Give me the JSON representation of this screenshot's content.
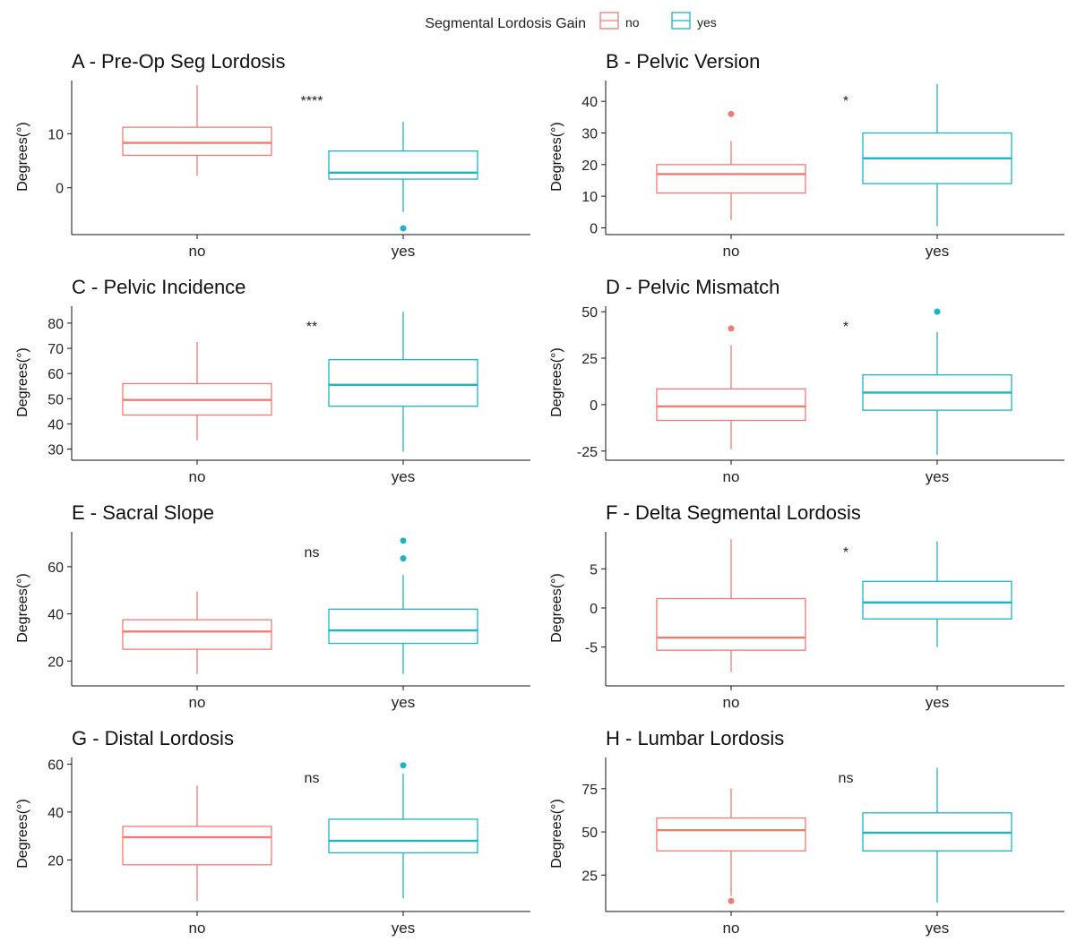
{
  "legend": {
    "title": "Segmental Lordosis Gain",
    "entries": [
      {
        "label": "no",
        "color": "#f17b72"
      },
      {
        "label": "yes",
        "color": "#1bb5c2"
      }
    ]
  },
  "chart_data": [
    {
      "type": "box",
      "title": "A - Pre-Op Seg Lordosis",
      "ylabel": "Degrees(°)",
      "categories": [
        "no",
        "yes"
      ],
      "ylim": [
        -8,
        19.5
      ],
      "yticks": [
        0,
        10
      ],
      "significance": "****",
      "boxes": [
        {
          "category": "no",
          "min": 2.2,
          "q1": 6.0,
          "median": 8.3,
          "q3": 11.2,
          "max": 19.0,
          "outliers": []
        },
        {
          "category": "yes",
          "min": -4.5,
          "q1": 1.6,
          "median": 2.8,
          "q3": 6.8,
          "max": 12.2,
          "outliers": [
            -7.5
          ]
        }
      ]
    },
    {
      "type": "box",
      "title": "B - Pelvic Version",
      "ylabel": "Degrees(°)",
      "categories": [
        "no",
        "yes"
      ],
      "ylim": [
        -1,
        46
      ],
      "yticks": [
        0,
        10,
        20,
        30,
        40
      ],
      "significance": "*",
      "boxes": [
        {
          "category": "no",
          "min": 2.5,
          "q1": 11.0,
          "median": 17.0,
          "q3": 20.0,
          "max": 27.5,
          "outliers": [
            36
          ]
        },
        {
          "category": "yes",
          "min": 0.5,
          "q1": 14.0,
          "median": 22.0,
          "q3": 30.0,
          "max": 45.5,
          "outliers": []
        }
      ]
    },
    {
      "type": "box",
      "title": "C - Pelvic Incidence",
      "ylabel": "Degrees(°)",
      "categories": [
        "no",
        "yes"
      ],
      "ylim": [
        27,
        86
      ],
      "yticks": [
        30,
        40,
        50,
        60,
        70,
        80
      ],
      "significance": "**",
      "boxes": [
        {
          "category": "no",
          "min": 33.5,
          "q1": 43.5,
          "median": 49.5,
          "q3": 56.0,
          "max": 72.5,
          "outliers": []
        },
        {
          "category": "yes",
          "min": 29.0,
          "q1": 47.0,
          "median": 55.5,
          "q3": 65.5,
          "max": 84.5,
          "outliers": []
        }
      ]
    },
    {
      "type": "box",
      "title": "D - Pelvic Mismatch",
      "ylabel": "Degrees(°)",
      "categories": [
        "no",
        "yes"
      ],
      "ylim": [
        -28,
        52
      ],
      "yticks": [
        -25,
        0,
        25,
        50
      ],
      "significance": "*",
      "boxes": [
        {
          "category": "no",
          "min": -24,
          "q1": -8.5,
          "median": -1.0,
          "q3": 8.5,
          "max": 32,
          "outliers": [
            41
          ]
        },
        {
          "category": "yes",
          "min": -27,
          "q1": -3.0,
          "median": 6.5,
          "q3": 16.0,
          "max": 39,
          "outliers": [
            50
          ]
        }
      ]
    },
    {
      "type": "box",
      "title": "E - Sacral Slope",
      "ylabel": "Degrees(°)",
      "categories": [
        "no",
        "yes"
      ],
      "ylim": [
        11,
        74
      ],
      "yticks": [
        20,
        40,
        60
      ],
      "significance": "ns",
      "boxes": [
        {
          "category": "no",
          "min": 14.5,
          "q1": 25.0,
          "median": 32.5,
          "q3": 37.5,
          "max": 49.5,
          "outliers": []
        },
        {
          "category": "yes",
          "min": 14.5,
          "q1": 27.5,
          "median": 33.0,
          "q3": 42.0,
          "max": 56.5,
          "outliers": [
            63.5,
            71
          ]
        }
      ]
    },
    {
      "type": "box",
      "title": "F - Delta Segmental Lordosis",
      "ylabel": "Degrees(°)",
      "categories": [
        "no",
        "yes"
      ],
      "ylim": [
        -9.5,
        9.5
      ],
      "yticks": [
        -5,
        0,
        5
      ],
      "significance": "*",
      "boxes": [
        {
          "category": "no",
          "min": -8.2,
          "q1": -5.4,
          "median": -3.8,
          "q3": 1.2,
          "max": 8.8,
          "outliers": []
        },
        {
          "category": "yes",
          "min": -5.0,
          "q1": -1.4,
          "median": 0.7,
          "q3": 3.4,
          "max": 8.5,
          "outliers": []
        }
      ]
    },
    {
      "type": "box",
      "title": "G - Distal Lordosis",
      "ylabel": "Degrees(°)",
      "categories": [
        "no",
        "yes"
      ],
      "ylim": [
        0,
        62
      ],
      "yticks": [
        20,
        40,
        60
      ],
      "significance": "ns",
      "boxes": [
        {
          "category": "no",
          "min": 3.0,
          "q1": 18.0,
          "median": 29.5,
          "q3": 34.0,
          "max": 51.0,
          "outliers": []
        },
        {
          "category": "yes",
          "min": 4.0,
          "q1": 23.0,
          "median": 28.0,
          "q3": 37.0,
          "max": 56.0,
          "outliers": [
            59.5
          ]
        }
      ]
    },
    {
      "type": "box",
      "title": "H - Lumbar Lordosis",
      "ylabel": "Degrees(°)",
      "categories": [
        "no",
        "yes"
      ],
      "ylim": [
        6,
        92
      ],
      "yticks": [
        25,
        50,
        75
      ],
      "significance": "ns",
      "boxes": [
        {
          "category": "no",
          "min": 13.0,
          "q1": 39.0,
          "median": 51.0,
          "q3": 58.0,
          "max": 75.0,
          "outliers": [
            10.0
          ]
        },
        {
          "category": "yes",
          "min": 9.0,
          "q1": 39.0,
          "median": 49.5,
          "q3": 61.0,
          "max": 87.0,
          "outliers": []
        }
      ]
    }
  ]
}
